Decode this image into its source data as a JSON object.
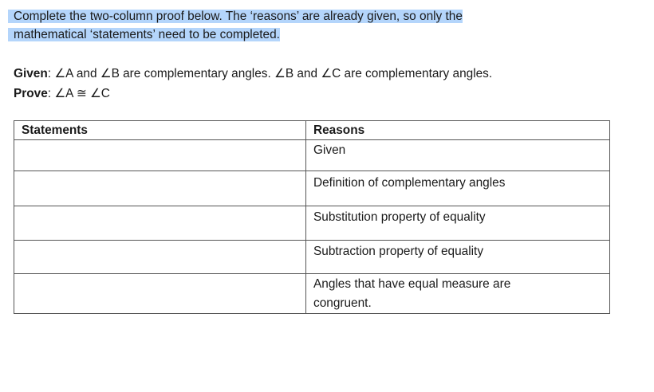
{
  "instructions": {
    "line1": "Complete the two-column proof below. The ‘reasons’ are already given, so only the",
    "line2": "mathematical ‘statements’ need to be completed."
  },
  "given": {
    "label": "Given",
    "text": "∠A and ∠B are complementary angles. ∠B and ∠C are complementary angles."
  },
  "prove": {
    "label": "Prove",
    "text": "∠A ≅ ∠C"
  },
  "table": {
    "headers": [
      "Statements",
      "Reasons"
    ],
    "rows": [
      {
        "statement": "",
        "reason": "Given"
      },
      {
        "statement": "",
        "reason": "Definition of complementary angles"
      },
      {
        "statement": "",
        "reason": "Substitution property of equality"
      },
      {
        "statement": "",
        "reason": "Subtraction property of equality"
      },
      {
        "statement": "",
        "reason": "Angles that have equal measure are congruent."
      }
    ]
  },
  "colors": {
    "highlight": "#b4d5fb",
    "border": "#555555"
  }
}
